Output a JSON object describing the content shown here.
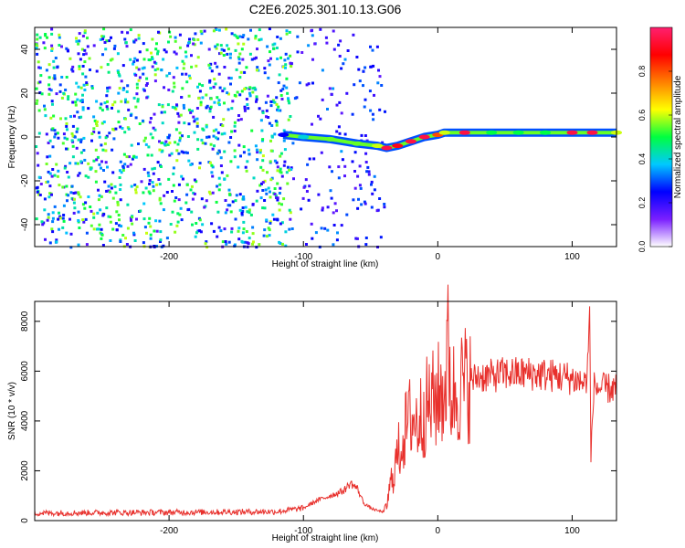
{
  "title": "C2E6.2025.301.10.13.G06",
  "chart_data": [
    {
      "type": "heatmap",
      "xlabel": "Height of straight line (km)",
      "ylabel": "Frequency (Hz)",
      "xlim": [
        -300,
        133
      ],
      "ylim": [
        -50,
        50
      ],
      "xticks": [
        -200,
        -100,
        0,
        100
      ],
      "yticks": [
        -40,
        -20,
        0,
        20,
        40
      ],
      "colorbar": {
        "label": "Normalized spectral amplitude",
        "range": [
          0,
          1
        ],
        "ticks": [
          "0.0",
          "0.2",
          "0.4",
          "0.6",
          "0.8"
        ],
        "colors": [
          "#ffffff",
          "#7a1fff",
          "#0000ff",
          "#00c8ff",
          "#00ff40",
          "#ffff00",
          "#ff8000",
          "#ff0000",
          "#ff2070"
        ]
      },
      "signal_track": {
        "x": [
          -115,
          -100,
          -80,
          -60,
          -45,
          -38,
          -30,
          -20,
          -10,
          0,
          5,
          20,
          40,
          60,
          80,
          100,
          115,
          133
        ],
        "y": [
          1,
          0,
          -1,
          -3,
          -4,
          -5,
          -4,
          -2,
          0,
          1,
          2,
          2,
          2,
          2,
          2,
          2,
          2,
          2
        ],
        "amplitude": [
          0.25,
          0.4,
          0.55,
          0.55,
          0.6,
          0.95,
          0.9,
          0.95,
          0.95,
          0.8,
          0.6,
          0.95,
          0.5,
          0.5,
          0.5,
          0.95,
          0.95,
          0.6
        ]
      },
      "noise_extent_x": [
        -300,
        -40
      ]
    },
    {
      "type": "line",
      "xlabel": "Height of straight line (km)",
      "ylabel": "SNR (10 * v/v)",
      "xlim": [
        -300,
        133
      ],
      "ylim": [
        0,
        8800
      ],
      "xticks": [
        -200,
        -100,
        0,
        100
      ],
      "yticks": [
        0,
        2000,
        4000,
        6000,
        8000
      ],
      "color": "#e8302c",
      "x": [
        -300,
        -250,
        -200,
        -150,
        -120,
        -100,
        -90,
        -80,
        -70,
        -65,
        -60,
        -55,
        -50,
        -45,
        -40,
        -38,
        -35,
        -30,
        -25,
        -20,
        -15,
        -10,
        -5,
        0,
        5,
        8,
        10,
        15,
        20,
        25,
        30,
        40,
        50,
        60,
        70,
        80,
        90,
        100,
        105,
        110,
        112,
        113,
        114,
        116,
        120,
        125,
        133
      ],
      "y": [
        300,
        320,
        330,
        350,
        360,
        500,
        800,
        1000,
        1200,
        1500,
        1300,
        700,
        500,
        400,
        350,
        600,
        1500,
        2600,
        3500,
        4200,
        3900,
        4500,
        4700,
        5000,
        5200,
        7000,
        5000,
        5300,
        5500,
        5600,
        5800,
        5800,
        5900,
        5900,
        5900,
        5850,
        5800,
        5700,
        5600,
        5500,
        6500,
        8500,
        2500,
        5400,
        5300,
        5300,
        5300
      ]
    }
  ]
}
